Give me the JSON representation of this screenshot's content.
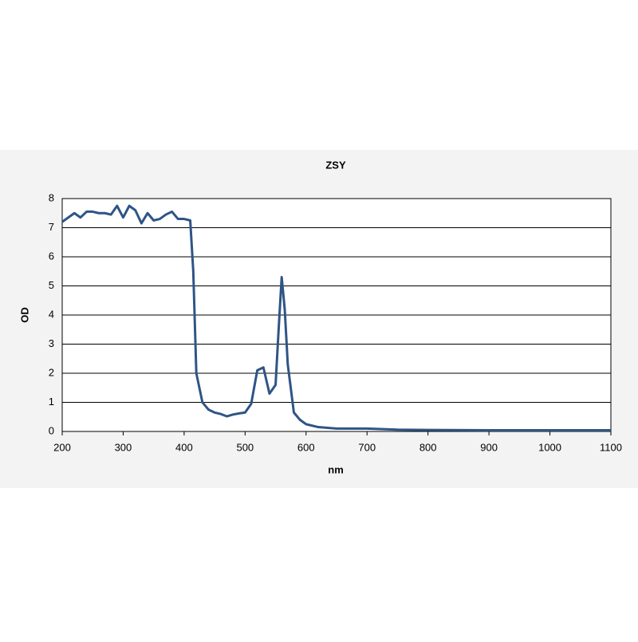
{
  "chart_data": {
    "type": "line",
    "title": "ZSY",
    "x_label": "nm",
    "y_label": "OD",
    "x": [
      200,
      210,
      220,
      230,
      240,
      250,
      260,
      270,
      280,
      290,
      300,
      310,
      320,
      330,
      340,
      350,
      360,
      370,
      380,
      390,
      400,
      410,
      415,
      420,
      430,
      440,
      450,
      460,
      470,
      480,
      490,
      500,
      510,
      520,
      530,
      540,
      550,
      555,
      560,
      565,
      570,
      580,
      590,
      600,
      620,
      650,
      700,
      750,
      800,
      900,
      1000,
      1100
    ],
    "series": [
      {
        "name": "ZSY",
        "color": "#2f5486",
        "values": [
          7.2,
          7.35,
          7.5,
          7.35,
          7.55,
          7.55,
          7.5,
          7.5,
          7.45,
          7.75,
          7.35,
          7.75,
          7.6,
          7.15,
          7.5,
          7.25,
          7.3,
          7.45,
          7.55,
          7.3,
          7.3,
          7.25,
          5.5,
          2.0,
          1.0,
          0.75,
          0.65,
          0.6,
          0.52,
          0.58,
          0.62,
          0.65,
          0.95,
          2.1,
          2.2,
          1.3,
          1.6,
          3.5,
          5.3,
          4.2,
          2.3,
          0.65,
          0.4,
          0.25,
          0.15,
          0.1,
          0.1,
          0.06,
          0.05,
          0.04,
          0.04,
          0.04
        ]
      }
    ],
    "xlim": [
      200,
      1100
    ],
    "xticks": [
      200,
      300,
      400,
      500,
      600,
      700,
      800,
      900,
      1000,
      1100
    ],
    "ylim": [
      0,
      8
    ],
    "yticks": [
      0,
      1,
      2,
      3,
      4,
      5,
      6,
      7,
      8
    ],
    "grid": true
  }
}
